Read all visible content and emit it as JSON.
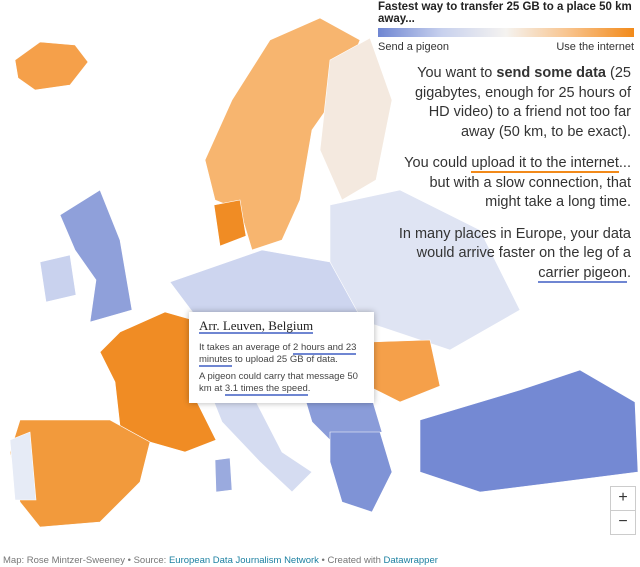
{
  "legend": {
    "title": "Fastest way to transfer 25 GB to a place 50 km away...",
    "left_label": "Send a pigeon",
    "right_label": "Use the internet"
  },
  "intro": [
    [
      "You want to ",
      "send some data",
      " (25 gigabytes, enough for 25 hours of HD video) to a friend not too far away (50 km, to be exact)."
    ],
    [
      "You could ",
      "upload it to the internet",
      "... but with a slow connection, that might take a long time."
    ],
    [
      "In many places in Europe, your data would arrive faster on the leg of a ",
      "carrier pigeon",
      "."
    ]
  ],
  "tooltip": {
    "title": "Arr. Leuven, Belgium",
    "line1": [
      "It takes an average of ",
      "2 hours and 23 minutes",
      " to upload 25 GB of data."
    ],
    "line2": [
      "A pigeon could carry that message 50 km at ",
      "3.1 times the speed",
      "."
    ]
  },
  "zoom": {
    "in": "+",
    "out": "−"
  },
  "footer": [
    "Map: Rose Mintzer-Sweeney • Source: ",
    "European Data Journalism Network",
    " • Created with ",
    "Datawrapper"
  ]
}
